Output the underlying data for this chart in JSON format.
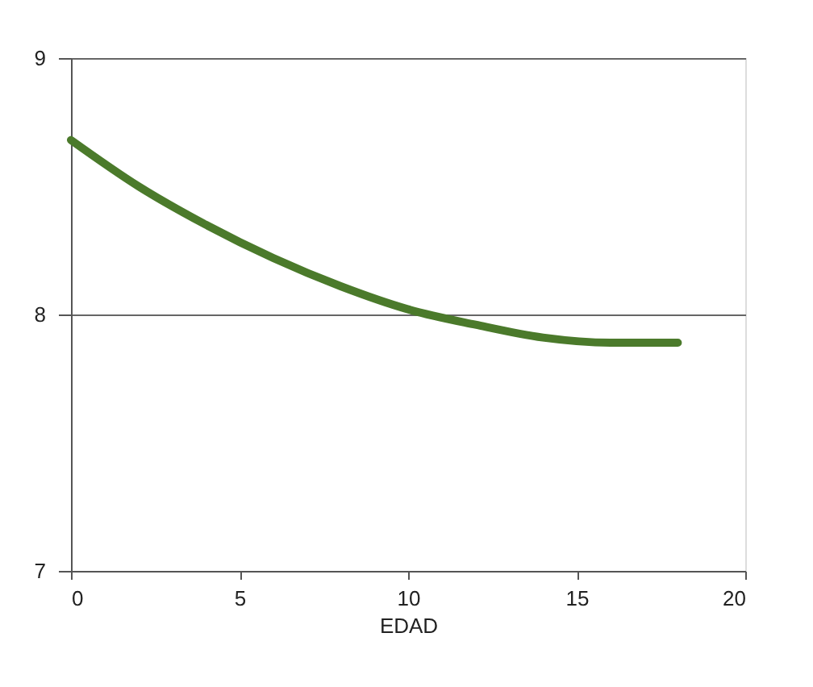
{
  "chart_data": {
    "type": "line",
    "xlabel": "EDAD",
    "x": [
      0,
      2,
      4,
      6,
      8,
      10,
      12,
      14,
      16,
      18
    ],
    "series": [
      {
        "color": "#4b7a2b",
        "values": [
          8.68,
          8.5,
          8.35,
          8.22,
          8.11,
          8.02,
          7.96,
          7.91,
          7.89,
          7.89
        ]
      }
    ],
    "xlim": [
      0,
      20
    ],
    "xticks": [
      0,
      5,
      10,
      15,
      20
    ],
    "ylim": [
      7,
      9
    ],
    "yticks": [
      7,
      8,
      9
    ],
    "grid": "y",
    "marker": "none",
    "line_style": "solid"
  }
}
